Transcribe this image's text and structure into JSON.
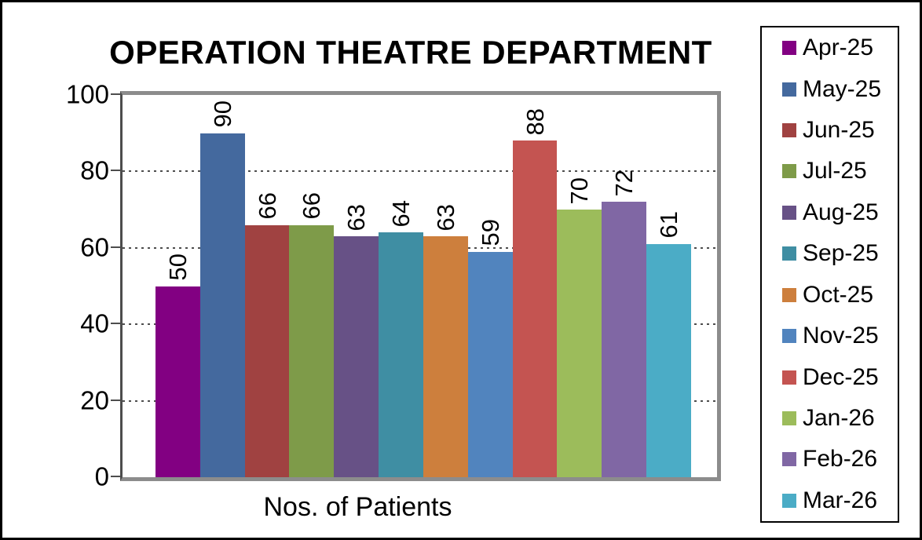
{
  "chart_data": {
    "type": "bar",
    "title": "OPERATION THEATRE DEPARTMENT",
    "xlabel": "Nos. of Patients",
    "ylabel": "",
    "ylim": [
      0,
      100
    ],
    "yticks": [
      0,
      20,
      40,
      60,
      80,
      100
    ],
    "grid": "horizontal-dotted",
    "legend_position": "right",
    "bar_label_rotation": -90,
    "categories": [
      "Apr-25",
      "May-25",
      "Jun-25",
      "Jul-25",
      "Aug-25",
      "Sep-25",
      "Oct-25",
      "Nov-25",
      "Dec-25",
      "Jan-26",
      "Feb-26",
      "Mar-26"
    ],
    "values": [
      50,
      90,
      66,
      66,
      63,
      64,
      63,
      59,
      88,
      70,
      72,
      61
    ],
    "colors": [
      "#820082",
      "#44699E",
      "#A04241",
      "#7E9B49",
      "#675186",
      "#3F8EA3",
      "#CD7F3D",
      "#5184BE",
      "#C45451",
      "#9CBC5B",
      "#8067A4",
      "#4BACC6"
    ],
    "plot_border_color": "#8C8C8C",
    "axis_line_color": "#4D4D4D",
    "outer_border_color": "#000000",
    "background_color": "#FFFFFF"
  }
}
